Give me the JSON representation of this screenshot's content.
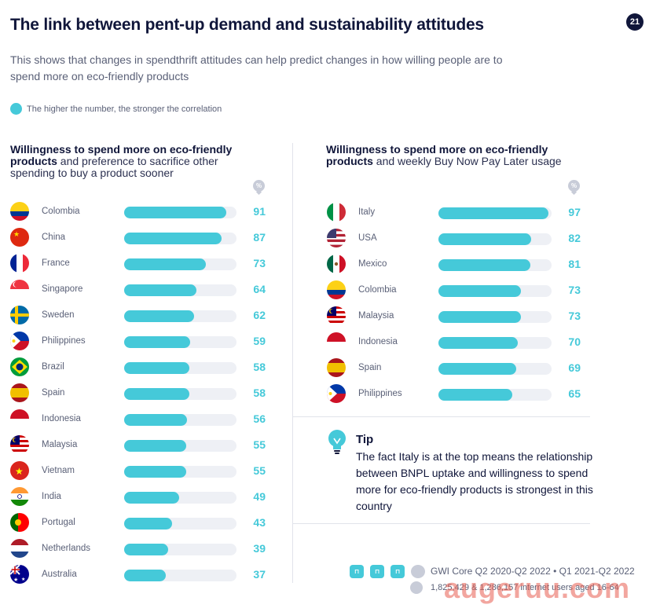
{
  "header": {
    "title": "The link between pent-up demand and sustainability attitudes",
    "page_number": "21",
    "subtitle": "This shows that changes in spendthrift attitudes can help predict changes in how willing people are to spend more on eco-friendly products",
    "legend": "The higher the number, the stronger the correlation",
    "percent_symbol": "%"
  },
  "colors": {
    "accent": "#45c9d9",
    "track": "#eef0f5",
    "navy": "#10163a",
    "text": "#5a6077"
  },
  "chart_data": [
    {
      "type": "bar",
      "orientation": "horizontal",
      "title_bold": "Willingness to spend more on eco-friendly products",
      "title_rest": " and preference to sacrifice other spending to buy a product sooner",
      "unit": "%",
      "xlim": [
        0,
        100
      ],
      "categories": [
        "Colombia",
        "China",
        "France",
        "Singapore",
        "Sweden",
        "Philippines",
        "Brazil",
        "Spain",
        "Indonesia",
        "Malaysia",
        "Vietnam",
        "India",
        "Portugal",
        "Netherlands",
        "Australia"
      ],
      "values": [
        91,
        87,
        73,
        64,
        62,
        59,
        58,
        58,
        56,
        55,
        55,
        49,
        43,
        39,
        37
      ]
    },
    {
      "type": "bar",
      "orientation": "horizontal",
      "title_bold": "Willingness to spend more on eco-friendly products",
      "title_rest": " and weekly Buy Now Pay Later usage",
      "unit": "%",
      "xlim": [
        0,
        100
      ],
      "categories": [
        "Italy",
        "USA",
        "Mexico",
        "Colombia",
        "Malaysia",
        "Indonesia",
        "Spain",
        "Philippines"
      ],
      "values": [
        97,
        82,
        81,
        73,
        73,
        70,
        69,
        65
      ]
    }
  ],
  "tip": {
    "title": "Tip",
    "body": "The fact Italy is at the top means the relationship between BNPL uptake and willingness to spend more for eco-friendly products is strongest in this country"
  },
  "footer": {
    "source": "GWI Core Q2 2020-Q2 2022 • Q1 2021-Q2 2022",
    "sample": "1,825,429 & 1,286,157 internet users aged 16-64",
    "watermark": "augeruu.com"
  }
}
